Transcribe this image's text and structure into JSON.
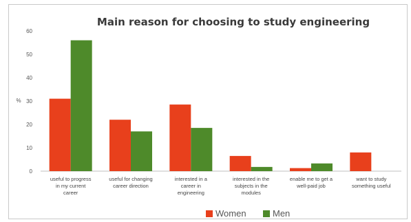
{
  "chart_data": {
    "type": "bar",
    "title": "Main reason for choosing to study engineering",
    "ylabel": "%",
    "xlabel": "",
    "ylim": [
      0,
      60
    ],
    "yticks": [
      0,
      10,
      20,
      30,
      40,
      50,
      60
    ],
    "grid": false,
    "legend_position": "bottom-center",
    "categories": [
      [
        "useful to progress",
        "in my current",
        "career"
      ],
      [
        "useful for changing",
        "career direction"
      ],
      [
        "interested in a",
        "career in",
        "engineering"
      ],
      [
        "interested in the",
        "subjects in the",
        "modules"
      ],
      [
        "enable me to get a",
        "well-paid job"
      ],
      [
        "want to study",
        "something useful"
      ]
    ],
    "series": [
      {
        "name": "Women",
        "color": "#e8401c",
        "values": [
          31,
          22,
          28.5,
          6.5,
          1.3,
          8
        ]
      },
      {
        "name": "Men",
        "color": "#4e8a2a",
        "values": [
          56,
          17,
          18.5,
          1.8,
          3.3,
          0
        ]
      }
    ]
  }
}
